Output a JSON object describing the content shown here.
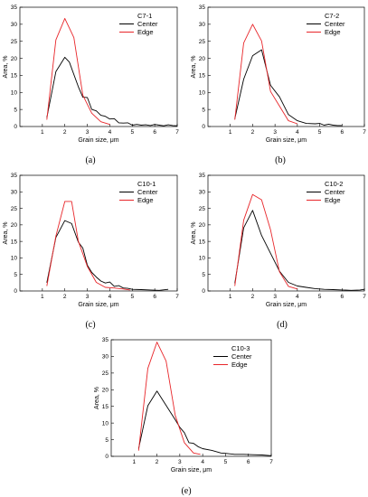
{
  "legend_labels": [
    "Center",
    "Edge"
  ],
  "colors": {
    "center": "#000000",
    "edge": "#e8262a"
  },
  "chart_data": [
    {
      "type": "line",
      "title": "C7-1",
      "panel_label": "(a)",
      "xlabel": "Grain size, μm",
      "ylabel": "Area, %",
      "xlim": [
        0,
        7
      ],
      "ylim": [
        0,
        35
      ],
      "xticks": [
        1,
        2,
        3,
        4,
        5,
        6,
        7
      ],
      "yticks": [
        0,
        5,
        10,
        15,
        20,
        25,
        30,
        35
      ],
      "legend_position": "top-right",
      "series": [
        {
          "name": "Center",
          "x": [
            1.2,
            1.6,
            2.0,
            2.2,
            2.6,
            2.8,
            3.0,
            3.2,
            3.4,
            3.6,
            3.8,
            4.0,
            4.2,
            4.4,
            4.6,
            4.8,
            5.0,
            5.2,
            5.4,
            5.6,
            5.8,
            6.0,
            6.2,
            6.4,
            6.6,
            6.8,
            7.0
          ],
          "y": [
            2.6,
            16.1,
            20.3,
            18.9,
            11.7,
            8.6,
            8.5,
            5.0,
            4.6,
            3.3,
            3.0,
            2.2,
            2.3,
            1.1,
            1.0,
            1.1,
            0.4,
            0.6,
            0.4,
            0.5,
            0.3,
            0.6,
            0.4,
            0.2,
            0.5,
            0.3,
            0.2
          ]
        },
        {
          "name": "Edge",
          "x": [
            1.2,
            1.6,
            2.0,
            2.4,
            2.8,
            3.2,
            3.6,
            4.0
          ],
          "y": [
            2.0,
            25.4,
            31.7,
            26.1,
            9.2,
            3.9,
            1.4,
            0.6
          ]
        }
      ]
    },
    {
      "type": "line",
      "title": "C7-2",
      "panel_label": "(b)",
      "xlabel": "Grain size, μm",
      "ylabel": "Area, %",
      "xlim": [
        0,
        7
      ],
      "ylim": [
        0,
        35
      ],
      "xticks": [
        1,
        2,
        3,
        4,
        5,
        6,
        7
      ],
      "yticks": [
        0,
        5,
        10,
        15,
        20,
        25,
        30,
        35
      ],
      "legend_position": "top-right",
      "series": [
        {
          "name": "Center",
          "x": [
            1.2,
            1.6,
            2.0,
            2.4,
            2.8,
            3.2,
            3.6,
            4.0,
            4.4,
            4.8,
            5.0,
            5.2,
            5.4,
            5.6,
            5.8,
            6.0
          ],
          "y": [
            2.3,
            13.9,
            20.8,
            22.5,
            12.1,
            8.7,
            3.5,
            1.7,
            0.9,
            0.8,
            0.9,
            0.4,
            0.7,
            0.4,
            0.3,
            0.3
          ]
        },
        {
          "name": "Edge",
          "x": [
            1.2,
            1.6,
            2.0,
            2.4,
            2.8,
            3.2,
            3.6,
            4.0
          ],
          "y": [
            2.0,
            24.5,
            30.0,
            25.1,
            10.3,
            6.0,
            1.7,
            0.8
          ]
        }
      ]
    },
    {
      "type": "line",
      "title": "C10-1",
      "panel_label": "(c)",
      "xlabel": "Grain size, μm",
      "ylabel": "Area, %",
      "xlim": [
        0,
        7
      ],
      "ylim": [
        0,
        35
      ],
      "xticks": [
        1,
        2,
        3,
        4,
        5,
        6,
        7
      ],
      "yticks": [
        0,
        5,
        10,
        15,
        20,
        25,
        30,
        35
      ],
      "legend_position": "top-right",
      "series": [
        {
          "name": "Center",
          "x": [
            1.2,
            1.6,
            2.0,
            2.3,
            2.6,
            2.8,
            3.0,
            3.2,
            3.4,
            3.6,
            3.8,
            4.0,
            4.2,
            4.4,
            4.6,
            4.8,
            5.0,
            5.4,
            5.8,
            6.2,
            6.6
          ],
          "y": [
            2.5,
            16.2,
            21.3,
            20.4,
            14.8,
            13.0,
            7.8,
            5.6,
            4.2,
            3.0,
            2.4,
            2.7,
            1.4,
            1.6,
            0.9,
            0.8,
            0.5,
            0.4,
            0.3,
            0.2,
            0.5
          ]
        },
        {
          "name": "Edge",
          "x": [
            1.2,
            1.6,
            2.0,
            2.3,
            2.6,
            3.0,
            3.4,
            3.8,
            4.2,
            4.6,
            4.9
          ],
          "y": [
            1.5,
            16.6,
            27.1,
            27.1,
            15.1,
            7.4,
            2.6,
            1.1,
            0.9,
            0.6,
            0.3
          ]
        }
      ]
    },
    {
      "type": "line",
      "title": "C10-2",
      "panel_label": "(d)",
      "xlabel": "Grain size, μm",
      "ylabel": "Area, %",
      "xlim": [
        0,
        7
      ],
      "ylim": [
        0,
        35
      ],
      "xticks": [
        1,
        2,
        3,
        4,
        5,
        6,
        7
      ],
      "yticks": [
        0,
        5,
        10,
        15,
        20,
        25,
        30,
        35
      ],
      "legend_position": "top-right",
      "series": [
        {
          "name": "Center",
          "x": [
            1.2,
            1.6,
            2.0,
            2.4,
            2.8,
            3.2,
            3.6,
            4.0,
            4.4,
            4.8,
            5.2,
            5.6,
            6.0,
            6.4,
            6.8,
            7.0
          ],
          "y": [
            2.3,
            19.1,
            24.4,
            16.8,
            11.4,
            6.0,
            2.6,
            1.5,
            1.1,
            0.7,
            0.5,
            0.4,
            0.3,
            0.2,
            0.3,
            0.5
          ]
        },
        {
          "name": "Edge",
          "x": [
            1.2,
            1.6,
            2.0,
            2.4,
            2.8,
            3.2,
            3.6,
            4.0
          ],
          "y": [
            1.5,
            21.4,
            29.2,
            27.6,
            18.5,
            5.8,
            1.4,
            0.6
          ]
        }
      ]
    },
    {
      "type": "line",
      "title": "C10-3",
      "panel_label": "(e)",
      "xlabel": "Grain size, μm",
      "ylabel": "Area, %",
      "xlim": [
        0,
        7
      ],
      "ylim": [
        0,
        35
      ],
      "xticks": [
        1,
        2,
        3,
        4,
        5,
        6,
        7
      ],
      "yticks": [
        0,
        5,
        10,
        15,
        20,
        25,
        30,
        35
      ],
      "legend_position": "top-right",
      "series": [
        {
          "name": "Center",
          "x": [
            1.2,
            1.6,
            2.0,
            2.4,
            2.8,
            3.0,
            3.2,
            3.4,
            3.6,
            3.8,
            4.0,
            4.4,
            4.8,
            5.0,
            5.4,
            5.8,
            6.2,
            6.6,
            7.0
          ],
          "y": [
            2.3,
            15.2,
            19.6,
            15.3,
            11.0,
            8.7,
            7.1,
            4.1,
            3.9,
            2.9,
            2.3,
            1.8,
            1.0,
            0.9,
            0.6,
            0.6,
            0.5,
            0.4,
            0.2
          ]
        },
        {
          "name": "Edge",
          "x": [
            1.2,
            1.6,
            2.0,
            2.4,
            2.8,
            3.2,
            3.6,
            3.9
          ],
          "y": [
            1.7,
            26.4,
            34.3,
            28.6,
            12.3,
            4.1,
            1.0,
            0.6
          ]
        }
      ]
    }
  ]
}
